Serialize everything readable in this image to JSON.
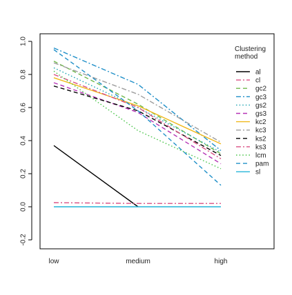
{
  "chart_data": {
    "type": "line",
    "title": "",
    "xlabel": "",
    "ylabel": "",
    "categories": [
      "low",
      "medium",
      "high"
    ],
    "ylim": [
      -0.2,
      1.0
    ],
    "yticks": [
      "-0.2",
      "0.0",
      "0.2",
      "0.4",
      "0.6",
      "0.8",
      "1.0"
    ],
    "grid": false,
    "legend": {
      "title_lines": [
        "Clustering",
        "method"
      ],
      "position": "top-right"
    },
    "series": [
      {
        "name": "al",
        "values": [
          0.37,
          0.0,
          null
        ],
        "color": "#000000",
        "dash": "solid"
      },
      {
        "name": "cl",
        "values": [
          0.025,
          0.02,
          0.02
        ],
        "color": "#d94f83",
        "dash": "dashdot"
      },
      {
        "name": "gc2",
        "values": [
          0.88,
          0.62,
          0.32
        ],
        "color": "#6fb84a",
        "dash": "dashed"
      },
      {
        "name": "gc3",
        "values": [
          0.96,
          0.74,
          0.34
        ],
        "color": "#1f8fc8",
        "dash": "dashdot"
      },
      {
        "name": "gs2",
        "values": [
          0.84,
          0.6,
          0.33
        ],
        "color": "#22a6b3",
        "dash": "dotted"
      },
      {
        "name": "gs3",
        "values": [
          0.75,
          0.57,
          0.26
        ],
        "color": "#b531b5",
        "dash": "dashed"
      },
      {
        "name": "kc2",
        "values": [
          0.78,
          0.61,
          0.38
        ],
        "color": "#f0b81a",
        "dash": "solid"
      },
      {
        "name": "kc3",
        "values": [
          0.87,
          0.68,
          0.39
        ],
        "color": "#9e9e9e",
        "dash": "dashdot"
      },
      {
        "name": "ks2",
        "values": [
          0.73,
          0.58,
          0.31
        ],
        "color": "#000000",
        "dash": "dashed"
      },
      {
        "name": "ks3",
        "values": [
          0.8,
          0.6,
          0.29
        ],
        "color": "#d94f83",
        "dash": "dashdot"
      },
      {
        "name": "lcm",
        "values": [
          0.82,
          0.46,
          0.23
        ],
        "color": "#4cc64c",
        "dash": "dotted"
      },
      {
        "name": "pam",
        "values": [
          0.95,
          0.58,
          0.13
        ],
        "color": "#1f8fc8",
        "dash": "dashed"
      },
      {
        "name": "sl",
        "values": [
          0.0,
          0.0,
          0.0
        ],
        "color": "#22b4d8",
        "dash": "solid"
      }
    ]
  }
}
